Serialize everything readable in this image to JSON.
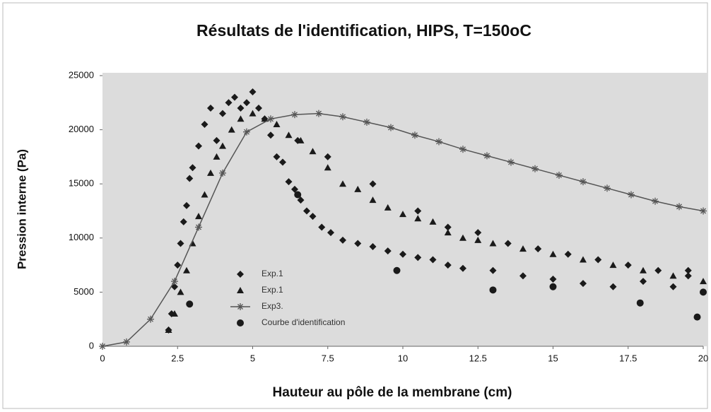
{
  "chart_data": {
    "type": "scatter",
    "title": "Résultats de l'identification, HIPS, T=150oC",
    "x_label": "Hauteur au pôle de la membrane (cm)",
    "y_label": "Pression interne (Pa)",
    "xlim": [
      0,
      20
    ],
    "ylim": [
      0,
      25000
    ],
    "xticks": [
      0,
      2.5,
      5,
      7.5,
      10,
      12.5,
      15,
      17.5,
      20
    ],
    "yticks": [
      0,
      5000,
      10000,
      15000,
      20000,
      25000
    ],
    "grid": false,
    "legend": "lower-left",
    "series": [
      {
        "name": "Exp.1",
        "color": "#1a1a1a",
        "marker": "diamond",
        "line": false,
        "x": [
          2.2,
          2.3,
          2.4,
          2.5,
          2.6,
          2.7,
          2.8,
          2.9,
          3.0,
          3.2,
          3.4,
          3.6,
          3.8,
          4.0,
          4.2,
          4.4,
          4.6,
          4.8,
          5.0,
          5.2,
          5.4,
          5.6,
          5.8,
          6.0,
          6.2,
          6.4,
          6.6,
          6.8,
          7.0,
          7.3,
          7.6,
          8.0,
          8.5,
          9.0,
          9.5,
          10.0,
          10.5,
          11.0,
          11.5,
          12.0,
          13.0,
          14.0,
          15.0,
          16.0,
          17.0,
          18.0,
          19.0,
          19.5,
          20.0,
          6.5,
          7.5,
          9.0,
          10.5,
          11.5,
          12.5,
          13.5,
          14.5,
          15.5,
          16.5,
          17.5,
          18.5,
          19.5
        ],
        "y": [
          1500,
          3000,
          5500,
          7500,
          9500,
          11500,
          13000,
          15500,
          16500,
          18500,
          20500,
          22000,
          19000,
          21500,
          22500,
          23000,
          22000,
          22500,
          23500,
          22000,
          21000,
          19500,
          17500,
          17000,
          15200,
          14500,
          13500,
          12500,
          12000,
          11000,
          10500,
          9800,
          9500,
          9200,
          8800,
          8500,
          8200,
          8000,
          7500,
          7200,
          7000,
          6500,
          6200,
          5800,
          5500,
          6000,
          5500,
          6500,
          5000,
          19000,
          17500,
          15000,
          12500,
          11000,
          10500,
          9500,
          9000,
          8500,
          8000,
          7500,
          7000,
          7000
        ]
      },
      {
        "name": "Exp.1",
        "color": "#1a1a1a",
        "marker": "triangle",
        "line": false,
        "x": [
          2.2,
          2.4,
          2.6,
          2.8,
          3.0,
          3.2,
          3.4,
          3.6,
          3.8,
          4.0,
          4.3,
          4.6,
          5.0,
          5.4,
          5.8,
          6.2,
          6.6,
          7.0,
          7.5,
          8.0,
          8.5,
          9.0,
          9.5,
          10.0,
          10.5,
          11.0,
          11.5,
          12.0,
          12.5,
          13.0,
          14.0,
          15.0,
          16.0,
          17.0,
          18.0,
          19.0,
          20.0
        ],
        "y": [
          1500,
          3000,
          5000,
          7000,
          9500,
          12000,
          14000,
          16000,
          17500,
          18500,
          20000,
          21000,
          21500,
          21000,
          20500,
          19500,
          19000,
          18000,
          16500,
          15000,
          14500,
          13500,
          12800,
          12200,
          11800,
          11500,
          10500,
          10000,
          9800,
          9500,
          9000,
          8500,
          8000,
          7500,
          7000,
          6500,
          6000
        ]
      },
      {
        "name": "Exp3.",
        "color": "#555555",
        "marker": "star",
        "line": true,
        "x": [
          0,
          0.8,
          1.6,
          2.4,
          3.2,
          4.0,
          4.8,
          5.6,
          6.4,
          7.2,
          8.0,
          8.8,
          9.6,
          10.4,
          11.2,
          12.0,
          12.8,
          13.6,
          14.4,
          15.2,
          16.0,
          16.8,
          17.6,
          18.4,
          19.2,
          20.0
        ],
        "y": [
          0,
          400,
          2500,
          6000,
          11000,
          16000,
          19800,
          21000,
          21400,
          21500,
          21200,
          20700,
          20200,
          19500,
          18900,
          18200,
          17600,
          17000,
          16400,
          15800,
          15200,
          14600,
          14000,
          13400,
          12900,
          12500
        ]
      },
      {
        "name": "Courbe d'identification",
        "color": "#1a1a1a",
        "marker": "circle",
        "line": false,
        "x": [
          2.9,
          6.5,
          9.8,
          13.0,
          15.0,
          17.9,
          19.8,
          20.0
        ],
        "y": [
          3900,
          14000,
          7000,
          5200,
          5500,
          4000,
          2700,
          5000
        ]
      }
    ]
  }
}
